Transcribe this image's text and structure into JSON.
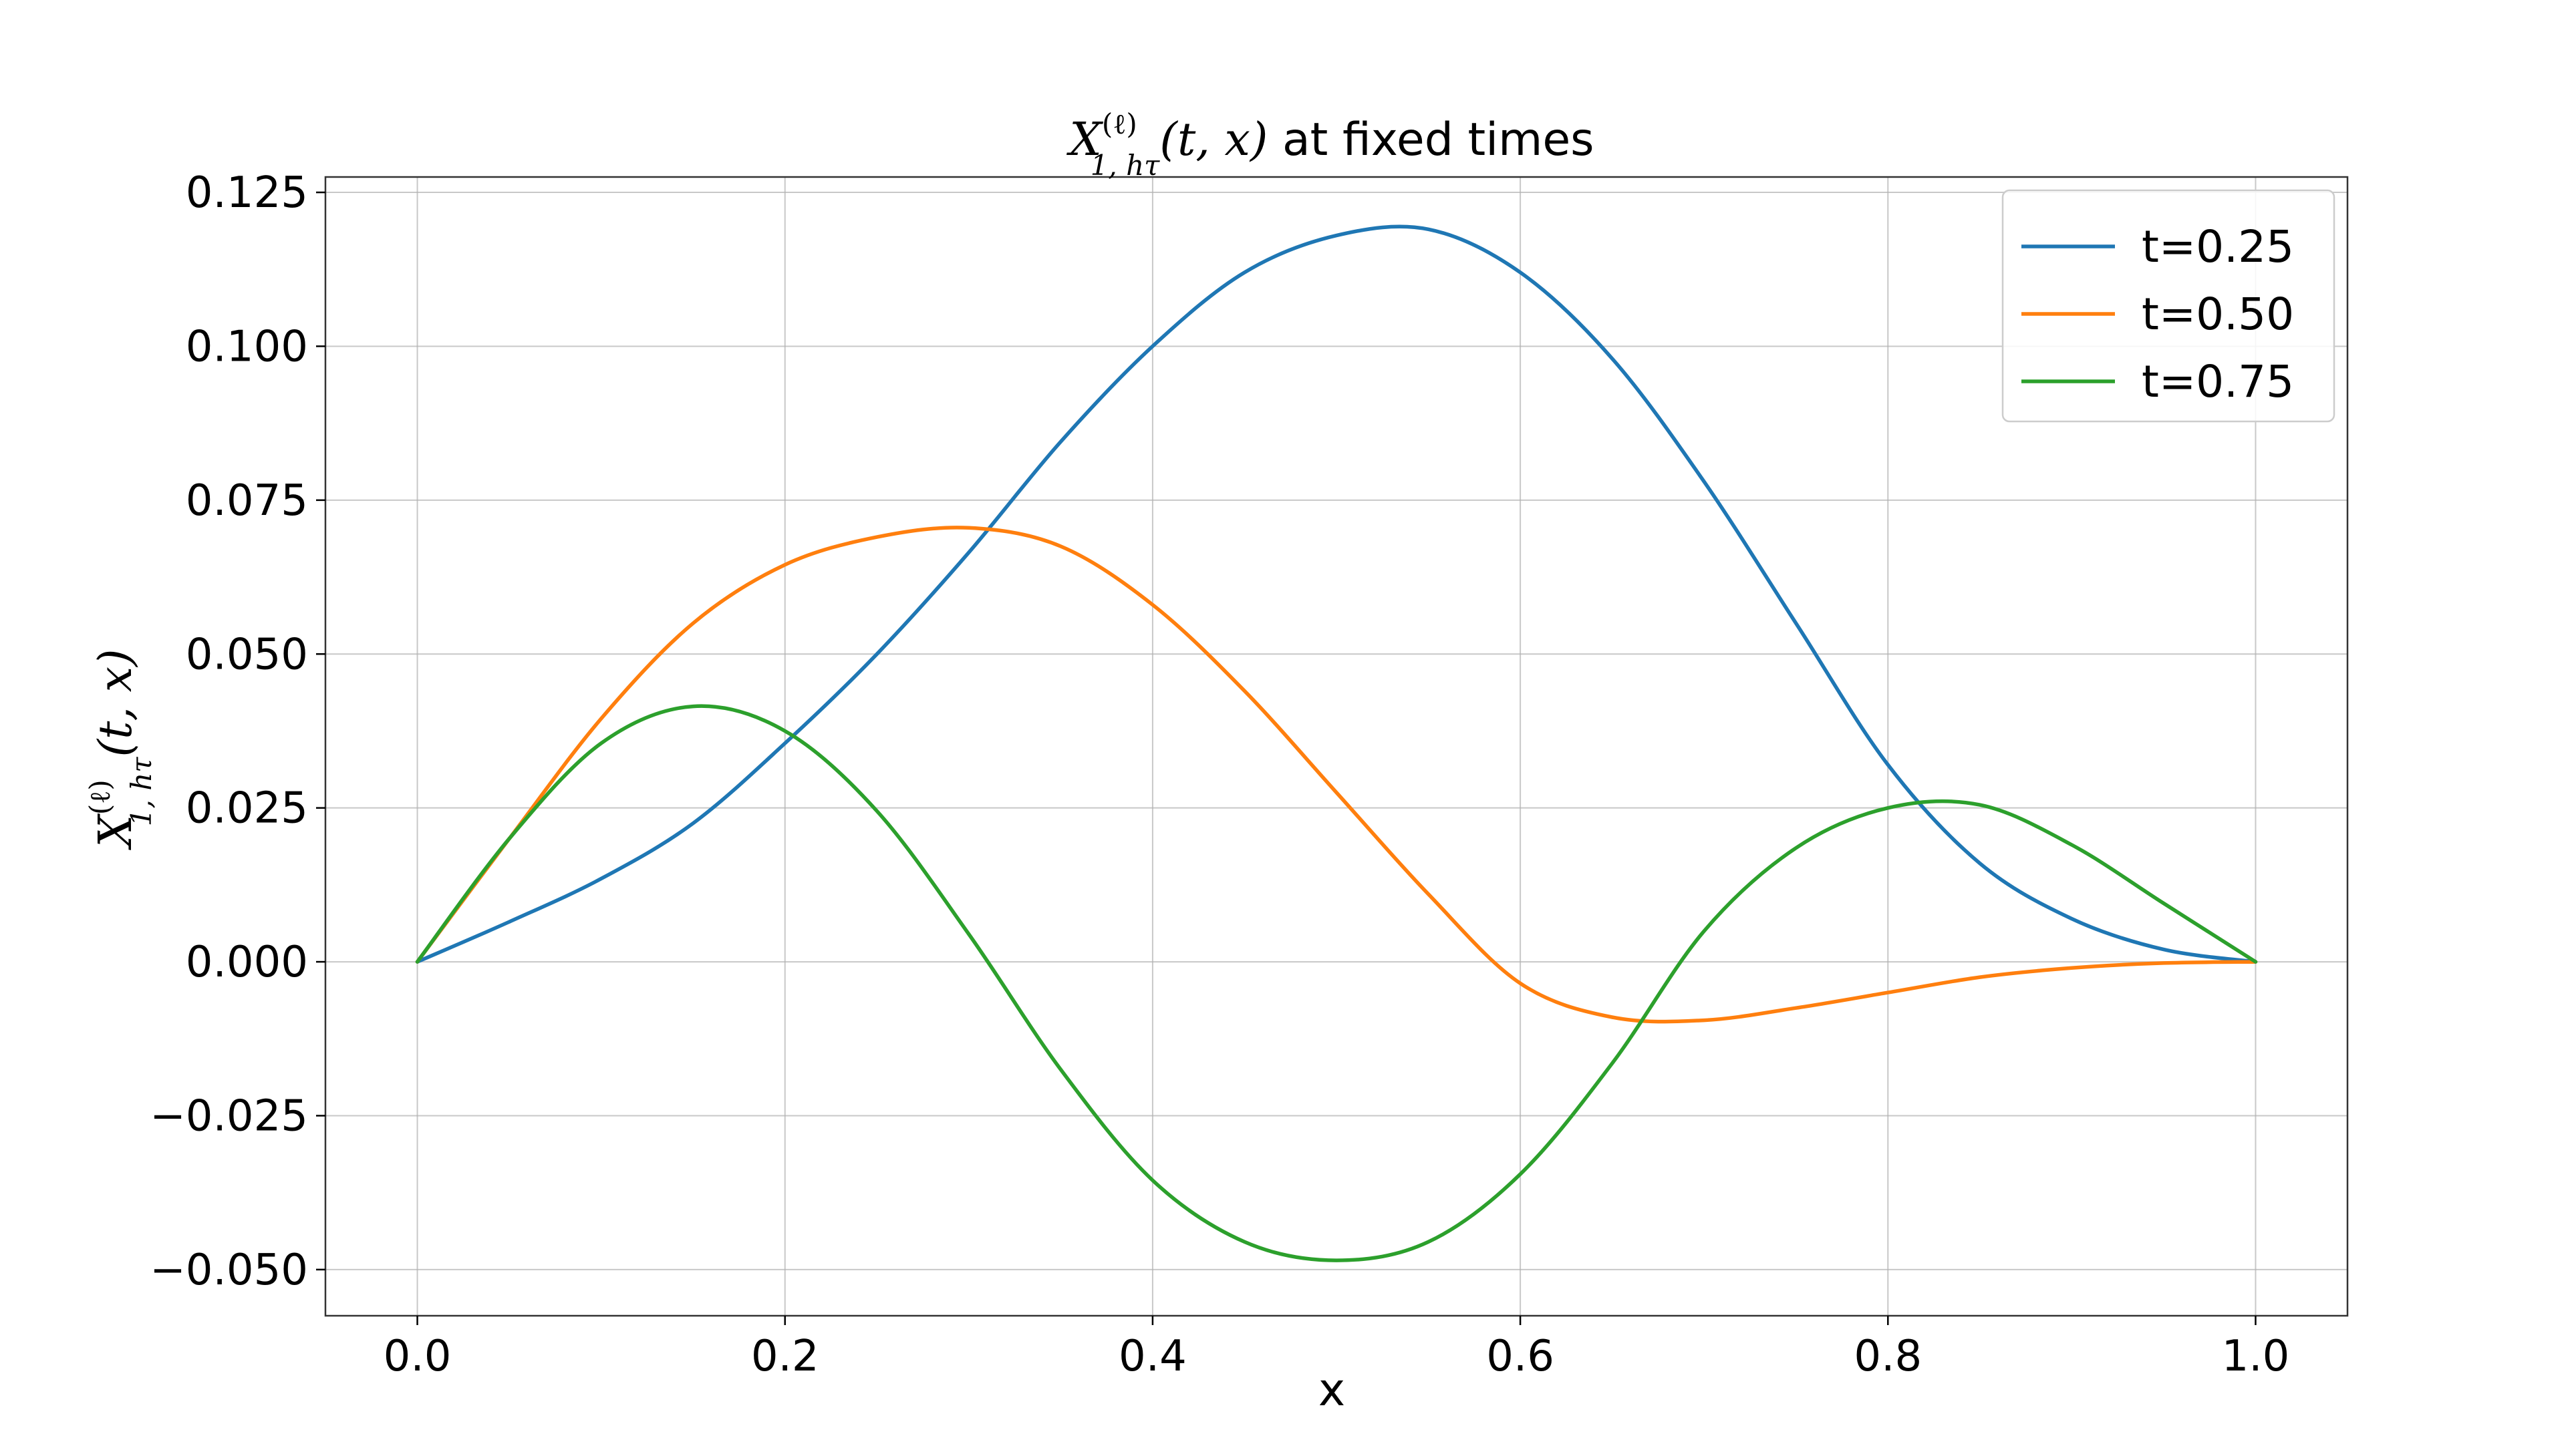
{
  "chart_data": {
    "type": "line",
    "title": {
      "symbol": "X",
      "superscript": "(ℓ)",
      "subscript": "1, hτ",
      "args": "(t, x)",
      "suffix": " at fixed times"
    },
    "xlabel": "x",
    "ylabel": {
      "symbol": "X",
      "superscript": "(ℓ)",
      "subscript": "1, hτ",
      "args": "(t, x)"
    },
    "xlim": [
      -0.05,
      1.05
    ],
    "ylim": [
      -0.0575,
      0.1275
    ],
    "grid": true,
    "legend_position": "top-right",
    "xticks": [
      0.0,
      0.2,
      0.4,
      0.6,
      0.8,
      1.0
    ],
    "xtick_labels": [
      "0.0",
      "0.2",
      "0.4",
      "0.6",
      "0.8",
      "1.0"
    ],
    "yticks": [
      0.125,
      0.1,
      0.075,
      0.05,
      0.025,
      0.0,
      -0.025,
      -0.05
    ],
    "ytick_labels": [
      "0.125",
      "0.100",
      "0.075",
      "0.050",
      "0.025",
      "0.000",
      "−0.025",
      "−0.050"
    ],
    "x": [
      0.0,
      0.05,
      0.1,
      0.15,
      0.2,
      0.25,
      0.3,
      0.35,
      0.4,
      0.45,
      0.5,
      0.55,
      0.6,
      0.65,
      0.7,
      0.75,
      0.8,
      0.85,
      0.9,
      0.95,
      1.0
    ],
    "series": [
      {
        "name": "t=0.25",
        "color": "#1f77b4",
        "values": [
          0.0,
          0.0065,
          0.0135,
          0.0225,
          0.0355,
          0.05,
          0.0665,
          0.0845,
          0.1,
          0.112,
          0.118,
          0.119,
          0.112,
          0.098,
          0.078,
          0.055,
          0.032,
          0.016,
          0.007,
          0.002,
          0.0
        ]
      },
      {
        "name": "t=0.50",
        "color": "#ff7f0e",
        "values": [
          0.0,
          0.02,
          0.0395,
          0.055,
          0.0645,
          0.069,
          0.0705,
          0.0675,
          0.058,
          0.044,
          0.0275,
          0.011,
          -0.0035,
          -0.009,
          -0.0095,
          -0.0075,
          -0.005,
          -0.0025,
          -0.001,
          -0.0002,
          0.0
        ]
      },
      {
        "name": "t=0.75",
        "color": "#2ca02c",
        "values": [
          0.0,
          0.02,
          0.0355,
          0.0415,
          0.0375,
          0.0245,
          0.0045,
          -0.0175,
          -0.0355,
          -0.0455,
          -0.0485,
          -0.0455,
          -0.0345,
          -0.0165,
          0.005,
          0.0185,
          0.025,
          0.0255,
          0.019,
          0.0095,
          0.0
        ]
      }
    ]
  }
}
